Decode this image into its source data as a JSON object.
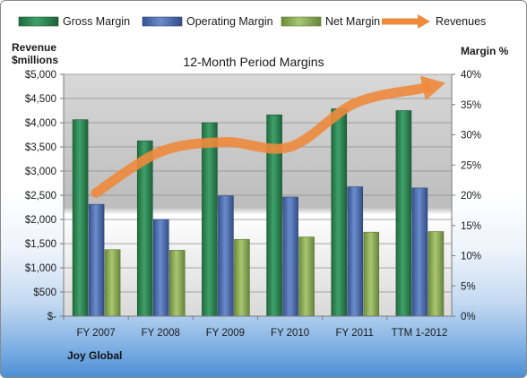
{
  "chart_data": {
    "type": "bar",
    "title": "12-Month Period Margins",
    "categories": [
      "FY 2007",
      "FY 2008",
      "FY 2009",
      "FY 2010",
      "FY 2011",
      "TTM 1-2012"
    ],
    "left_axis": {
      "label_line1": "Revenue",
      "label_line2": "$millions",
      "ylim": [
        0,
        5000
      ],
      "ticks": [
        "$-",
        "$500",
        "$1,000",
        "$1,500",
        "$2,000",
        "$2,500",
        "$3,000",
        "$3,500",
        "$4,000",
        "$4,500",
        "$5,000"
      ]
    },
    "right_axis": {
      "label": "Margin %",
      "ylim": [
        0,
        40
      ],
      "ticks": [
        "0%",
        "5%",
        "10%",
        "15%",
        "20%",
        "25%",
        "30%",
        "35%",
        "40%"
      ]
    },
    "series": [
      {
        "name": "Gross Margin",
        "axis": "right",
        "kind": "bar",
        "color": "#2e8b57",
        "values": [
          32.5,
          29.0,
          32.0,
          33.3,
          34.3,
          34.0
        ]
      },
      {
        "name": "Operating Margin",
        "axis": "right",
        "kind": "bar",
        "color": "#4f6fb5",
        "values": [
          18.5,
          16.0,
          19.9,
          19.7,
          21.4,
          21.2
        ]
      },
      {
        "name": "Net Margin",
        "axis": "right",
        "kind": "bar",
        "color": "#8db255",
        "values": [
          11.0,
          10.9,
          12.7,
          13.1,
          13.9,
          14.0
        ]
      },
      {
        "name": "Revenues",
        "axis": "left",
        "kind": "arrow-line",
        "color": "#ee8a3c",
        "values": [
          2550,
          3400,
          3600,
          3500,
          4400,
          4700
        ]
      }
    ],
    "grid": true,
    "legend": "top"
  },
  "company_label": "Joy Global"
}
